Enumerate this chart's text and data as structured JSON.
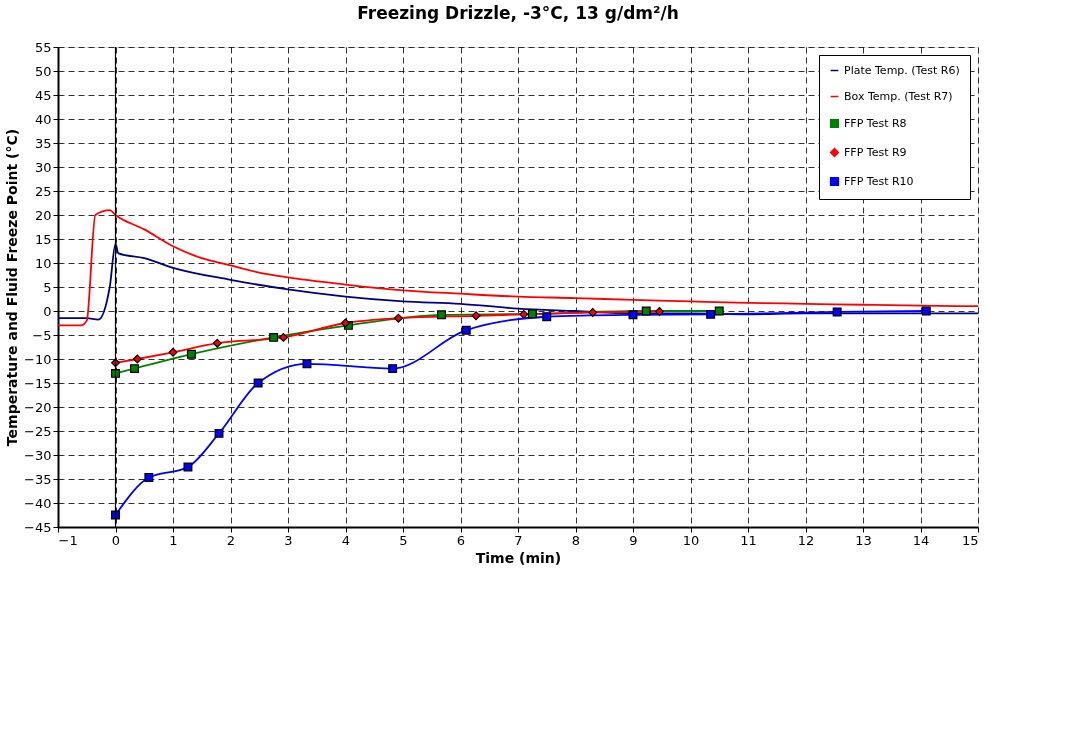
{
  "chart_data": {
    "type": "line",
    "title": "Freezing Drizzle, -3°C, 13 g/dm²/h",
    "xlabel": "Time (min)",
    "ylabel": "Temperature and Fluid Freeze Point (°C)",
    "xlim": [
      -1,
      15
    ],
    "xticks": [
      -1,
      0,
      1,
      2,
      3,
      4,
      5,
      6,
      7,
      8,
      9,
      10,
      11,
      12,
      13,
      14,
      15
    ],
    "ylim": [
      -45,
      55
    ],
    "yticks": [
      -45,
      -40,
      -35,
      -30,
      -25,
      -20,
      -15,
      -10,
      -5,
      0,
      5,
      10,
      15,
      20,
      25,
      30,
      35,
      40,
      45,
      50,
      55
    ],
    "grid": true,
    "legend": "top right",
    "line_style": "solid",
    "ref_lines": [
      {
        "axis": "x",
        "value": 0,
        "color": "#000000"
      }
    ],
    "series": [
      {
        "name": "Plate Temp. (Test R6)",
        "color": "#000080",
        "marker": "none",
        "x": [
          -1,
          -0.5,
          -0.3,
          -0.1,
          0,
          0.05,
          0.5,
          1,
          2,
          3,
          4,
          5,
          6,
          7,
          8,
          9,
          10,
          11,
          12,
          13,
          14,
          15
        ],
        "values": [
          -1.5,
          -1.5,
          -1.8,
          5,
          14,
          12,
          11,
          9,
          6.5,
          4.5,
          3,
          2,
          1.5,
          0.5,
          0,
          -0.5,
          -0.5,
          -0.7,
          -0.5,
          -0.5,
          -0.5,
          -0.5
        ]
      },
      {
        "name": "Box Temp. (Test R7)",
        "color": "#ff0000",
        "marker": "none",
        "x": [
          -1,
          -0.6,
          -0.5,
          -0.35,
          -0.1,
          0,
          0.5,
          1,
          1.5,
          2,
          2.5,
          3,
          4,
          5,
          6,
          7,
          8,
          9,
          10,
          11,
          12,
          13,
          14,
          15
        ],
        "values": [
          -3,
          -3,
          -2,
          20,
          21,
          20,
          17,
          13.5,
          11,
          9.5,
          8,
          7,
          5.5,
          4.3,
          3.6,
          3,
          2.7,
          2.3,
          2,
          1.7,
          1.5,
          1.3,
          1.1,
          1
        ]
      },
      {
        "name": "FFP Test R8",
        "color": "#008000",
        "marker": "square",
        "x": [
          0,
          0.33,
          1.32,
          2.75,
          4.05,
          5.67,
          7.25,
          9.23,
          10.5
        ],
        "values": [
          -13,
          -12,
          -9,
          -5.5,
          -3,
          -0.8,
          -0.6,
          0,
          0
        ]
      },
      {
        "name": "FFP Test R9",
        "color": "#ff0000",
        "marker": "diamond",
        "x": [
          0,
          0.38,
          1,
          1.77,
          2.92,
          4,
          4.92,
          6.27,
          7.1,
          8.3,
          9.46
        ],
        "values": [
          -10.8,
          -10,
          -8.6,
          -6.7,
          -5.5,
          -2.5,
          -1.5,
          -1,
          -0.7,
          -0.3,
          -0.1
        ]
      },
      {
        "name": "FFP Test R10",
        "color": "#0000ff",
        "marker": "square",
        "x": [
          0,
          0.58,
          1.26,
          1.8,
          2.48,
          3.33,
          4.82,
          6.1,
          7.5,
          9,
          10.35,
          12.55,
          14.1
        ],
        "values": [
          -42.5,
          -34.7,
          -32.5,
          -25.5,
          -15,
          -11,
          -12,
          -4,
          -1.2,
          -0.8,
          -0.7,
          -0.2,
          0
        ]
      }
    ]
  }
}
